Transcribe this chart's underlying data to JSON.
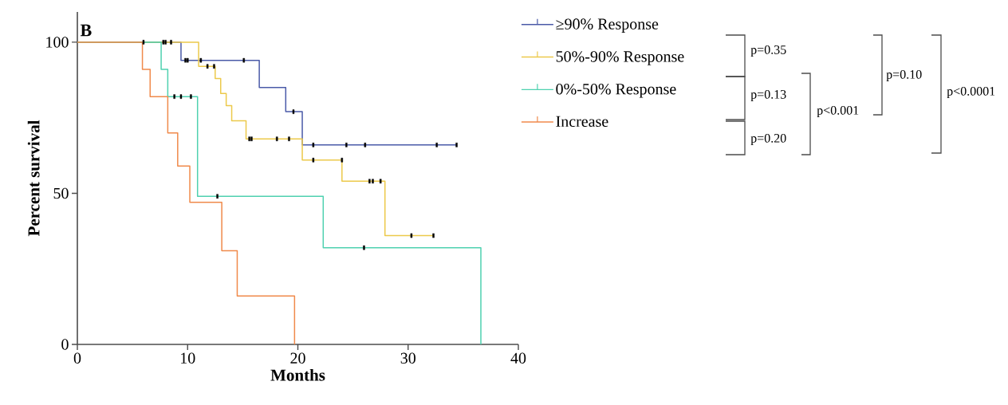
{
  "chart_data": {
    "type": "step",
    "xlabel": "Months",
    "ylabel": "Percent survival",
    "xlim": [
      0,
      40
    ],
    "ylim": [
      0,
      110
    ],
    "xticks": [
      0,
      10,
      20,
      30,
      40
    ],
    "yticks": [
      0,
      50,
      100
    ],
    "legend": "top right",
    "grid": false,
    "annotations": [
      "B",
      "p=0.35",
      "p=0.13",
      "p=0.20",
      "p<0.001",
      "p=0.10",
      "p<0.0001"
    ],
    "series": [
      {
        "name": "≥90% Response",
        "color": "#4a5aa8",
        "x": [
          0,
          9.4,
          16.5,
          18.9,
          20.4,
          34.4
        ],
        "values": [
          100,
          94,
          85,
          77,
          66,
          66
        ]
      },
      {
        "name": "50%-90% Response",
        "color": "#ecc94b",
        "x": [
          0,
          11.0,
          12.5,
          13.0,
          13.5,
          14.0,
          15.3,
          20.4,
          24.0,
          27.9,
          32.3
        ],
        "values": [
          100,
          92,
          88,
          83,
          79,
          74,
          68,
          61,
          54,
          36,
          36
        ]
      },
      {
        "name": "0%-50% Response",
        "color": "#4fd1b0",
        "x": [
          0,
          7.6,
          8.2,
          10.9,
          22.3,
          36.6
        ],
        "values": [
          100,
          91,
          82,
          49,
          32,
          0
        ]
      },
      {
        "name": "Increase",
        "color": "#f08a4b",
        "x": [
          0,
          5.9,
          6.6,
          8.2,
          9.1,
          10.2,
          13.1,
          14.5,
          19.7
        ],
        "values": [
          100,
          91,
          82,
          70,
          59,
          47,
          31,
          16,
          0
        ]
      },
      {
        "type": "scatter",
        "color": "#000000",
        "marker": "square",
        "x": [
          6.0,
          7.8,
          8.0,
          8.5,
          9.8,
          10.0,
          11.2,
          15.1,
          19.6,
          21.4,
          24.4,
          26.1,
          32.6,
          34.4,
          11.8,
          12.4,
          15.6,
          15.8,
          18.1,
          19.2,
          21.4,
          24.0,
          26.5,
          26.8,
          27.5,
          30.3,
          32.3,
          8.8,
          9.4,
          10.3,
          12.7,
          26.0
        ],
        "values": [
          100,
          100,
          100,
          100,
          94,
          94,
          94,
          94,
          77,
          66,
          66,
          66,
          66,
          66,
          92,
          92,
          68,
          68,
          68,
          68,
          61,
          61,
          54,
          54,
          54,
          36,
          36,
          82,
          82,
          82,
          49,
          32
        ]
      }
    ]
  }
}
